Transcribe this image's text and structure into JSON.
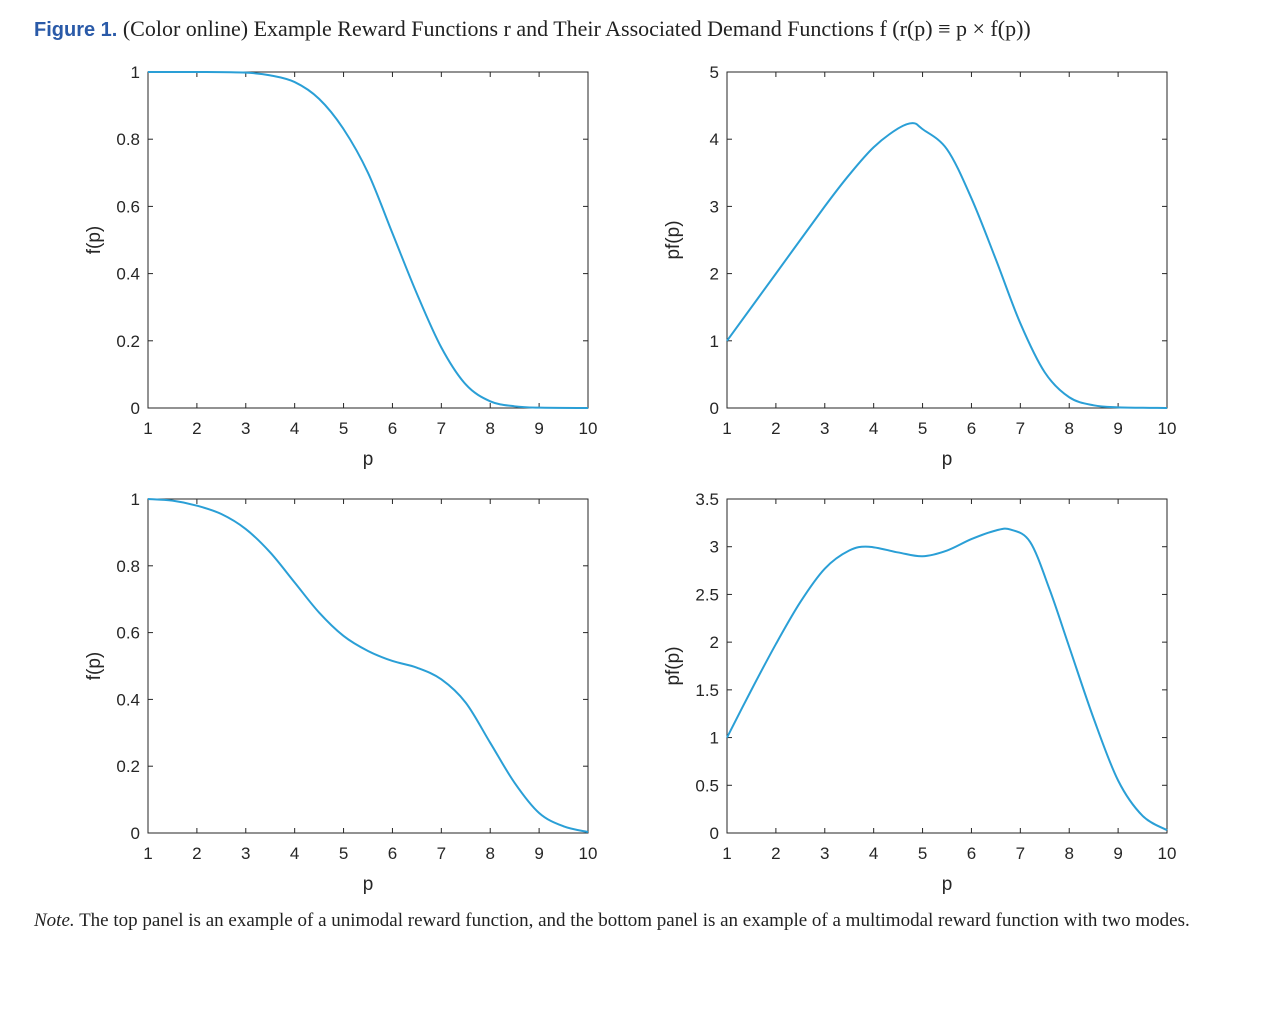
{
  "caption": {
    "label": "Figure 1.",
    "text": "(Color online) Example Reward Functions r and Their Associated Demand Functions f (r(p) ≡ p × f(p))"
  },
  "note": {
    "label": "Note.",
    "text": "The top panel is an example of a unimodal reward function, and the bottom panel is an example of a multimodal reward function with two modes."
  },
  "colors": {
    "line": "#2a9fd6",
    "axis": "#262626"
  },
  "chart_data": [
    {
      "id": "top-left",
      "type": "line",
      "xlabel": "p",
      "ylabel": "f(p)",
      "xlim": [
        1,
        10
      ],
      "ylim": [
        0,
        1
      ],
      "xticks": [
        1,
        2,
        3,
        4,
        5,
        6,
        7,
        8,
        9,
        10
      ],
      "yticks": [
        0,
        0.2,
        0.4,
        0.6,
        0.8,
        1
      ],
      "ytick_labels": [
        "0",
        "0.2",
        "0.4",
        "0.6",
        "0.8",
        "1"
      ],
      "series": [
        {
          "name": "f(p)",
          "x": [
            1,
            2,
            3,
            3.5,
            4,
            4.5,
            5,
            5.5,
            6,
            6.5,
            7,
            7.5,
            8,
            8.5,
            9,
            10
          ],
          "y": [
            1,
            1,
            0.998,
            0.99,
            0.97,
            0.92,
            0.83,
            0.7,
            0.52,
            0.34,
            0.18,
            0.07,
            0.02,
            0.005,
            0.001,
            0
          ]
        }
      ]
    },
    {
      "id": "top-right",
      "type": "line",
      "xlabel": "p",
      "ylabel": "pf(p)",
      "xlim": [
        1,
        10
      ],
      "ylim": [
        0,
        5
      ],
      "xticks": [
        1,
        2,
        3,
        4,
        5,
        6,
        7,
        8,
        9,
        10
      ],
      "yticks": [
        0,
        1,
        2,
        3,
        4,
        5
      ],
      "ytick_labels": [
        "0",
        "1",
        "2",
        "3",
        "4",
        "5"
      ],
      "series": [
        {
          "name": "pf(p)",
          "x": [
            1,
            2,
            3,
            3.5,
            4,
            4.5,
            4.8,
            5,
            5.5,
            6,
            6.5,
            7,
            7.5,
            8,
            8.5,
            9,
            10
          ],
          "y": [
            1,
            2,
            3,
            3.47,
            3.88,
            4.16,
            4.24,
            4.15,
            3.85,
            3.12,
            2.21,
            1.26,
            0.53,
            0.16,
            0.04,
            0.01,
            0
          ]
        }
      ]
    },
    {
      "id": "bottom-left",
      "type": "line",
      "xlabel": "p",
      "ylabel": "f(p)",
      "xlim": [
        1,
        10
      ],
      "ylim": [
        0,
        1
      ],
      "xticks": [
        1,
        2,
        3,
        4,
        5,
        6,
        7,
        8,
        9,
        10
      ],
      "yticks": [
        0,
        0.2,
        0.4,
        0.6,
        0.8,
        1
      ],
      "ytick_labels": [
        "0",
        "0.2",
        "0.4",
        "0.6",
        "0.8",
        "1"
      ],
      "series": [
        {
          "name": "f(p)",
          "x": [
            1,
            1.5,
            2,
            2.5,
            3,
            3.5,
            4,
            4.5,
            5,
            5.5,
            6,
            6.5,
            7,
            7.5,
            8,
            8.5,
            9,
            9.5,
            10
          ],
          "y": [
            1,
            0.995,
            0.98,
            0.955,
            0.91,
            0.84,
            0.75,
            0.66,
            0.59,
            0.545,
            0.515,
            0.495,
            0.46,
            0.39,
            0.27,
            0.15,
            0.06,
            0.02,
            0.003
          ]
        }
      ]
    },
    {
      "id": "bottom-right",
      "type": "line",
      "xlabel": "p",
      "ylabel": "pf(p)",
      "xlim": [
        1,
        10
      ],
      "ylim": [
        0,
        3.5
      ],
      "xticks": [
        1,
        2,
        3,
        4,
        5,
        6,
        7,
        8,
        9,
        10
      ],
      "yticks": [
        0,
        0.5,
        1,
        1.5,
        2,
        2.5,
        3,
        3.5
      ],
      "ytick_labels": [
        "0",
        "0.5",
        "1",
        "1.5",
        "2",
        "2.5",
        "3",
        "3.5"
      ],
      "series": [
        {
          "name": "pf(p)",
          "x": [
            1,
            1.5,
            2,
            2.5,
            3,
            3.5,
            3.9,
            4.5,
            5,
            5.5,
            6,
            6.5,
            6.8,
            7.2,
            7.6,
            8,
            8.5,
            9,
            9.5,
            10
          ],
          "y": [
            1,
            1.5,
            1.98,
            2.42,
            2.77,
            2.96,
            3.0,
            2.94,
            2.9,
            2.96,
            3.08,
            3.17,
            3.18,
            3.05,
            2.55,
            1.95,
            1.2,
            0.55,
            0.18,
            0.03
          ]
        }
      ]
    }
  ]
}
